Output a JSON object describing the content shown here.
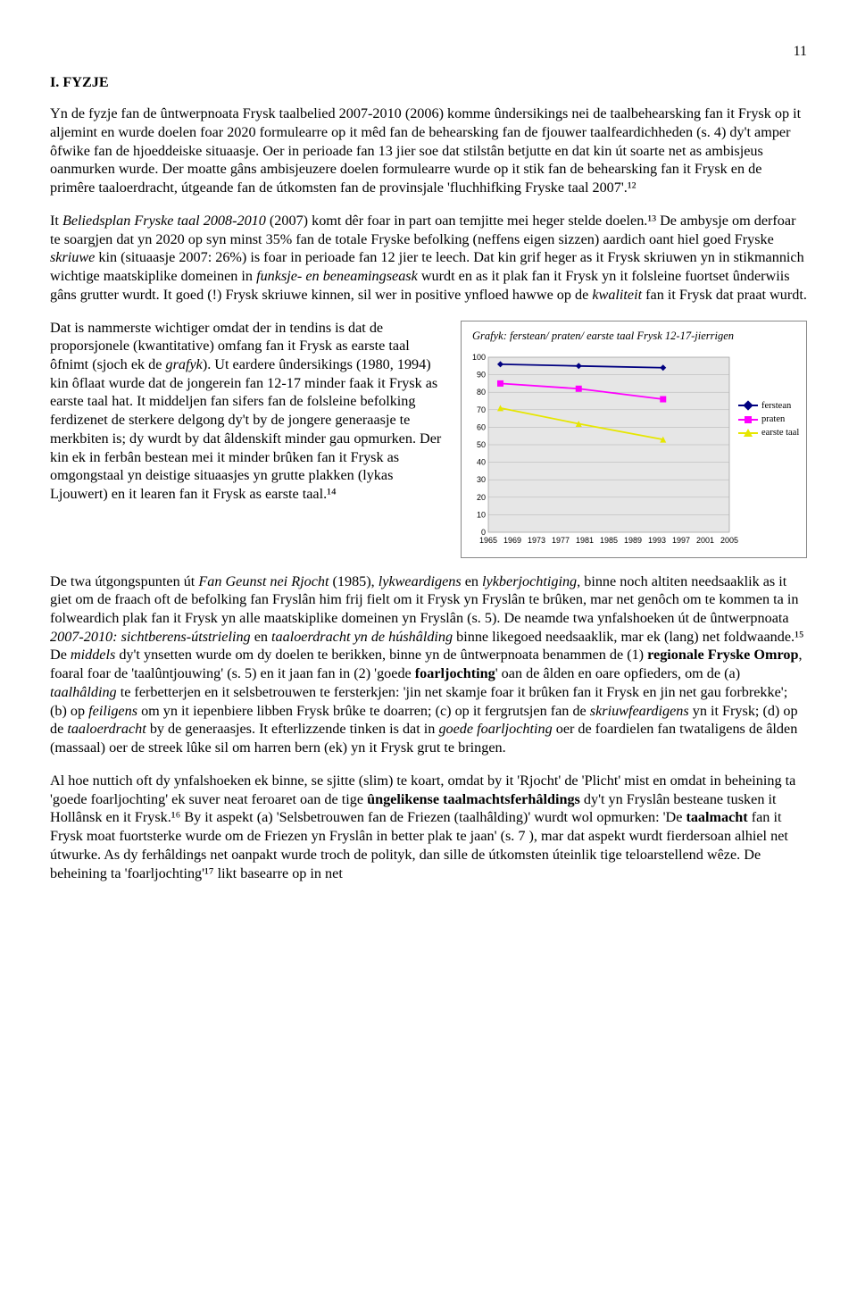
{
  "page_number": "11",
  "heading": "I. FYZJE",
  "para1": "Yn de fyzje fan de ûntwerpnoata Frysk taalbelied 2007-2010 (2006) komme ûndersikings nei de taalbehearsking fan it Frysk op it aljemint en wurde doelen foar 2020 formulearre op it mêd fan de behearsking fan de fjouwer taalfeardichheden (s. 4) dy't amper ôfwike fan de hjoeddeiske situaasje. Oer in perioade fan 13 jier soe dat stilstân betjutte en dat kin út soarte net as ambisjeus oanmurken wurde. Der moatte gâns ambisjeuzere doelen formulearre wurde op it stik fan de behearsking fan it Frysk en de primêre taaloerdracht, útgeande fan de útkomsten fan de provinsjale 'fluchhifking Fryske taal 2007'.¹²",
  "para2": "It Beliedsplan Fryske taal 2008-2010 (2007) komt dêr foar in part oan temjitte mei heger stelde doelen.¹³ De ambysje om derfoar te soargjen dat yn 2020 op syn minst 35% fan de totale Fryske befolking (neffens eigen sizzen) aardich oant hiel goed Fryske skriuwe kin (situaasje 2007: 26%) is foar in perioade fan 12 jier te leech. Dat kin grif heger as it Frysk skriuwen yn in stikmannich wichtige maatskiplike domeinen in funksje- en beneamingseask wurdt en as it plak fan it Frysk yn it folsleine fuortset ûnderwiis gâns grutter wurdt. It goed (!) Frysk skriuwe kinnen, sil wer in positive ynfloed hawwe op de kwaliteit fan it Frysk dat praat wurdt.",
  "para3": "Dat is nammerste wichtiger omdat der in tendins is dat de proporsjonele (kwantitative) omfang fan it Frysk as earste taal ôfnimt (sjoch ek de grafyk). Ut eardere ûndersikings (1980, 1994) kin ôflaat wurde dat de jongerein fan 12-17 minder faak it Frysk as earste taal hat. It middeljen fan sifers fan de folsleine befolking ferdizenet de sterkere delgong dy't by de jongere generaasje te merkbiten is; dy wurdt by dat âldenskift minder gau opmurken. Der kin ek in ferbân bestean mei it minder brûken fan it Frysk as omgongstaal yn deistige situaasjes yn grutte plakken (lykas Ljouwert) en it learen fan it Frysk as earste taal.¹⁴",
  "para4_pre": "De twa útgongspunten út ",
  "para4_it1": "Fan Geunst nei Rjocht",
  "para4_mid1": " (1985), ",
  "para4_it2": "lykweardigens",
  "para4_mid2": " en ",
  "para4_it3": "lykberjochtiging",
  "para4_mid3": ", binne noch altiten needsaaklik as it giet om de fraach oft de befolking fan Fryslân him frij fielt om it Frysk yn Fryslân te brûken, mar net genôch om te kommen ta in folweardich plak fan it Frysk yn alle maatskiplike domeinen yn Fryslân (s. 5). De neamde twa ynfalshoeken út de ûntwerpnoata ",
  "para4_it4": "2007-2010: sichtberens-útstrieling",
  "para4_mid4": " en ",
  "para4_it5": "taaloerdracht yn de húshâlding",
  "para4_mid5": " binne likegoed needsaaklik, mar ek (lang) net foldwaande.¹⁵ De ",
  "para4_it6": "middels",
  "para4_mid6": " dy't ynsetten wurde om dy doelen te berikken, binne yn de ûntwerpnoata benammen de (1) ",
  "para4_b1": "regionale Fryske Omrop",
  "para4_mid7": ", foaral foar de 'taalûntjouwing' (s. 5) en it jaan fan in (2) 'goede ",
  "para4_b2": "foarljochting",
  "para4_mid8": "' oan de âlden en oare opfieders, om de (a) ",
  "para4_it7": "taalhâlding",
  "para4_mid9": " te ferbetterjen en it selsbetrouwen te fersterkjen: 'jin net skamje foar it brûken fan it Frysk en jin net gau forbrekke'; (b) op ",
  "para4_it8": "feiligens",
  "para4_mid10": " om yn it iepenbiere libben Frysk brûke te doarren; (c) op it fergrutsjen fan de ",
  "para4_it9": "skriuwfeardigens",
  "para4_mid11": " yn it Frysk; (d) op de ",
  "para4_it10": "taaloerdracht",
  "para4_mid12": " by de generaasjes. It efterlizzende tinken is dat in ",
  "para4_it11": "goede foarljochting",
  "para4_end": " oer de foardielen fan twataligens de âlden (massaal) oer de streek lûke sil om harren bern (ek) yn it Frysk grut te bringen.",
  "para5_pre": "Al hoe nuttich oft dy ynfalshoeken ek binne, se sjitte (slim) te koart, omdat by it 'Rjocht' de 'Plicht' mist en omdat in beheining ta 'goede foarljochting' ek suver neat feroaret oan de tige ",
  "para5_b1": "ûngelikense taalmachtsferhâldings",
  "para5_mid1": " dy't yn Fryslân besteane tusken it Hollânsk en it Frysk.¹⁶ By it aspekt (a) 'Selsbetrouwen fan de Friezen (taalhâlding)' wurdt wol opmurken: 'De ",
  "para5_b2": "taalmacht",
  "para5_mid2": " fan it Frysk moat fuortsterke wurde om de Friezen yn Fryslân in better plak te jaan' (s. 7 ), mar dat aspekt wurdt fierdersoan alhiel net útwurke. As dy ferhâldings net oanpakt wurde troch de polityk, dan sille de útkomsten úteinlik tige teloarstellend wêze. De beheining ta 'foarljochting'¹⁷ likt basearre op in net",
  "chart": {
    "title": "Grafyk: ferstean/ praten/ earste taal Frysk 12-17-jierrigen",
    "type": "line",
    "x_labels": [
      "1965",
      "1969",
      "1973",
      "1977",
      "1981",
      "1985",
      "1989",
      "1993",
      "1997",
      "2001",
      "2005"
    ],
    "ylim": [
      0,
      100
    ],
    "ytick_step": 10,
    "background_color": "#e6e6e6",
    "grid_color": "#b0b0b0",
    "series": [
      {
        "name": "ferstean",
        "color": "#000080",
        "marker": "diamond",
        "points": [
          [
            1967,
            96
          ],
          [
            1980,
            95
          ],
          [
            1994,
            94
          ]
        ]
      },
      {
        "name": "praten",
        "color": "#ff00ff",
        "marker": "square",
        "points": [
          [
            1967,
            85
          ],
          [
            1980,
            82
          ],
          [
            1994,
            76
          ]
        ]
      },
      {
        "name": "earste taal",
        "color": "#e6e600",
        "marker": "triangle",
        "points": [
          [
            1967,
            71
          ],
          [
            1980,
            62
          ],
          [
            1994,
            53
          ]
        ]
      }
    ],
    "xlim": [
      1965,
      2005
    ],
    "axis_fontsize": 9,
    "marker_size": 7
  }
}
